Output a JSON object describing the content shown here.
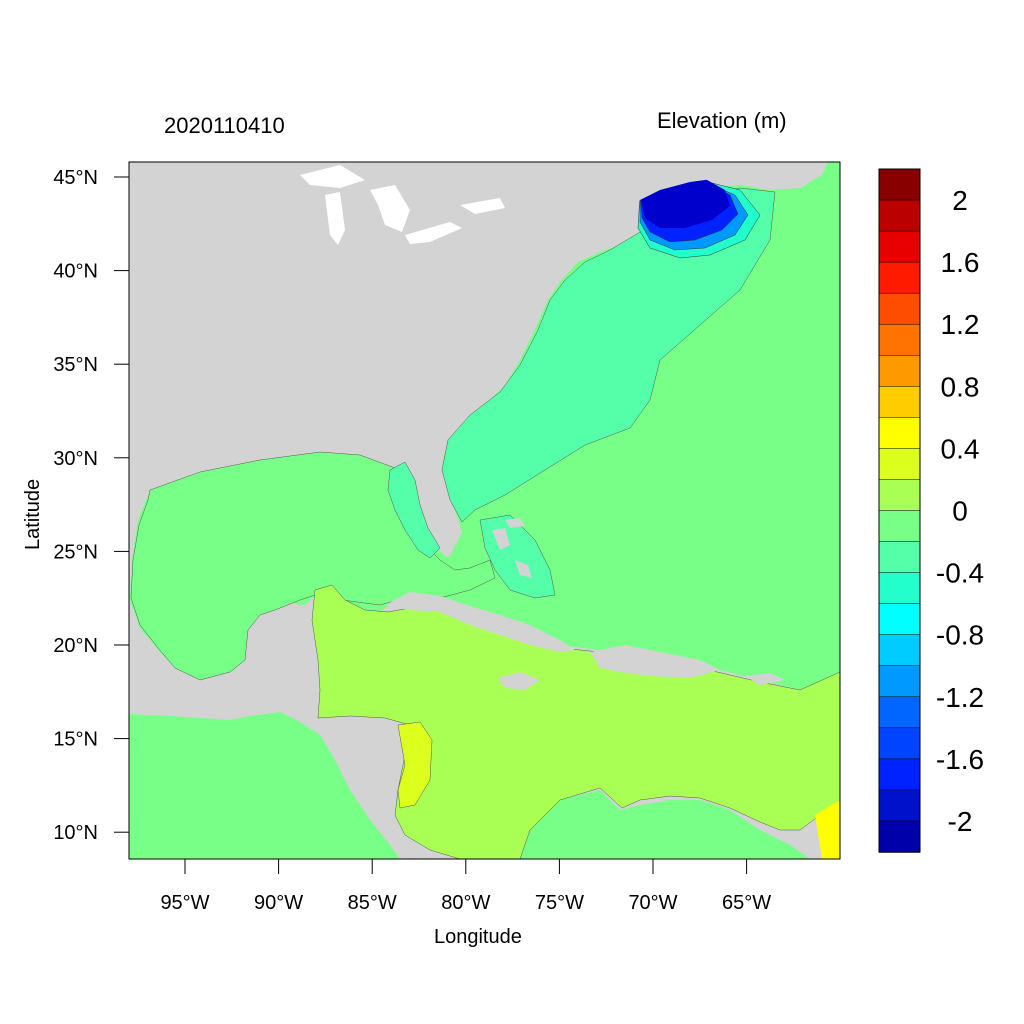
{
  "left_title": "2020110410",
  "right_title": "Elevation (m)",
  "x_axis_label": "Longitude",
  "y_axis_label": "Latitude",
  "lat_ticks": [
    "45°N",
    "40°N",
    "35°N",
    "30°N",
    "25°N",
    "20°N",
    "15°N",
    "10°N"
  ],
  "lon_ticks": [
    "95°W",
    "90°W",
    "85°W",
    "80°W",
    "75°W",
    "70°W",
    "65°W"
  ],
  "colorbar": {
    "labels": [
      "2",
      "1.6",
      "1.2",
      "0.8",
      "0.4",
      "0",
      "-0.4",
      "-0.8",
      "-1.2",
      "-1.6",
      "-2"
    ],
    "colors": [
      "#880000",
      "#bb0000",
      "#e60000",
      "#ff1a00",
      "#ff4d00",
      "#ff7300",
      "#ff9900",
      "#ffcc00",
      "#ffff00",
      "#dcff1e",
      "#aaff55",
      "#77ff88",
      "#55ffaa",
      "#22ffcc",
      "#00ffff",
      "#00ccff",
      "#0099ff",
      "#0066ff",
      "#0044ff",
      "#0022ff",
      "#0011cc",
      "#0000aa"
    ]
  },
  "colors": {
    "land": "#d3d3d3",
    "lakes": "#ffffff",
    "elevation_0_to_0.2": "#aaff55",
    "elevation_minus_0.2_to_0": "#77ff88",
    "elevation_minus_0.4_to_minus_0.2": "#55ffaa",
    "elevation_low": "#0000cc"
  }
}
